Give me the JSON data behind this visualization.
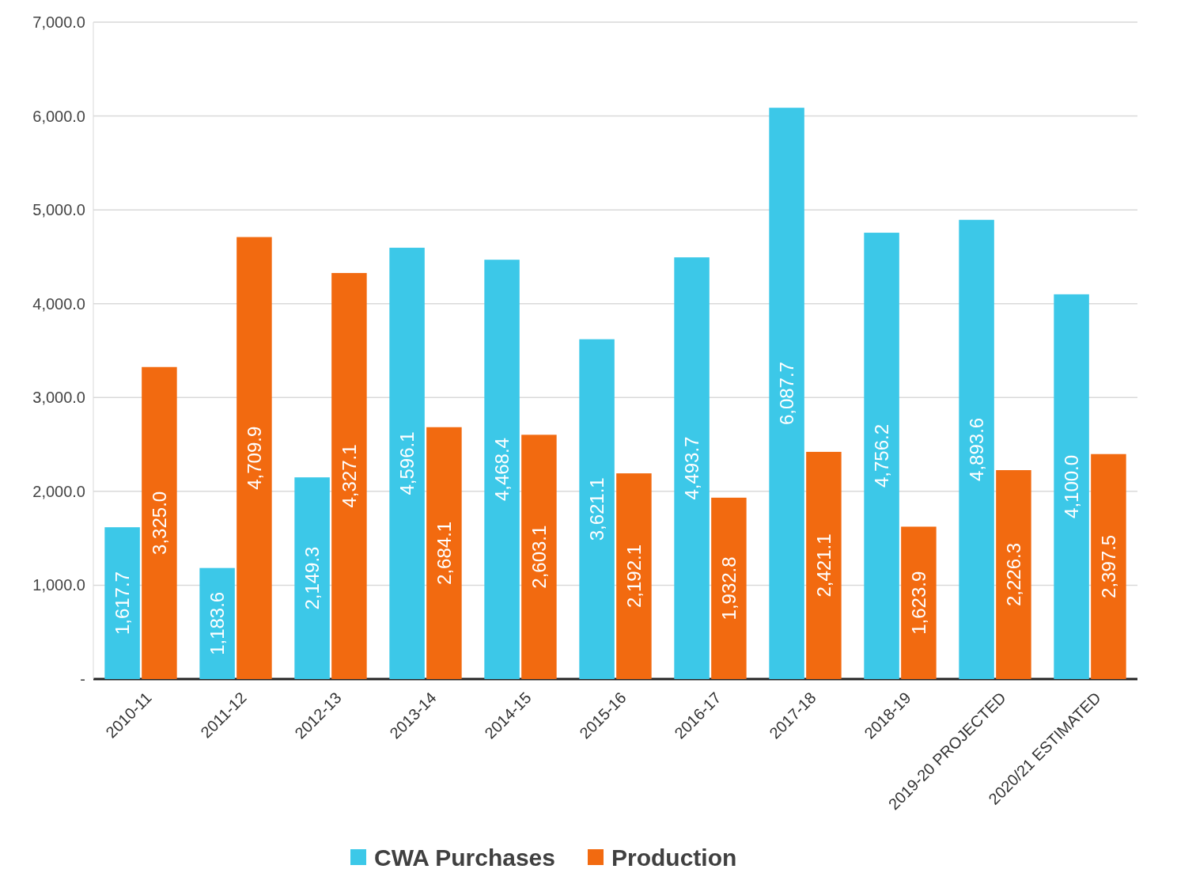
{
  "chart_data": {
    "type": "bar",
    "categories": [
      "2010-11",
      "2011-12",
      "2012-13",
      "2013-14",
      "2014-15",
      "2015-16",
      "2016-17",
      "2017-18",
      "2018-19",
      "2019-20 PROJECTED",
      "2020/21 ESTIMATED"
    ],
    "series": [
      {
        "name": "CWA Purchases",
        "color": "#3cc8e8",
        "values": [
          1617.7,
          1183.6,
          2149.3,
          4596.1,
          4468.4,
          3621.1,
          4493.7,
          6087.7,
          4756.2,
          4893.6,
          4100.0
        ],
        "value_labels": [
          "1,617.7",
          "1,183.6",
          "2,149.3",
          "4,596.1",
          "4,468.4",
          "3,621.1",
          "4,493.7",
          "6,087.7",
          "4,756.2",
          "4,893.6",
          "4,100.0"
        ]
      },
      {
        "name": "Production",
        "color": "#f26a10",
        "values": [
          3325.0,
          4709.9,
          4327.1,
          2684.1,
          2603.1,
          2192.1,
          1932.8,
          2421.1,
          1623.9,
          2226.3,
          2397.5
        ],
        "value_labels": [
          "3,325.0",
          "4,709.9",
          "4,327.1",
          "2,684.1",
          "2,603.1",
          "2,192.1",
          "1,932.8",
          "2,421.1",
          "1,623.9",
          "2,226.3",
          "2,397.5"
        ]
      }
    ],
    "ylim": [
      0,
      7000
    ],
    "yticks": [
      {
        "value": 0,
        "label": "-"
      },
      {
        "value": 1000,
        "label": "1,000.0"
      },
      {
        "value": 2000,
        "label": "2,000.0"
      },
      {
        "value": 3000,
        "label": "3,000.0"
      },
      {
        "value": 4000,
        "label": "4,000.0"
      },
      {
        "value": 5000,
        "label": "5,000.0"
      },
      {
        "value": 6000,
        "label": "6,000.0"
      },
      {
        "value": 7000,
        "label": "7,000.0"
      }
    ],
    "grid": "y",
    "legend": "bottom"
  }
}
